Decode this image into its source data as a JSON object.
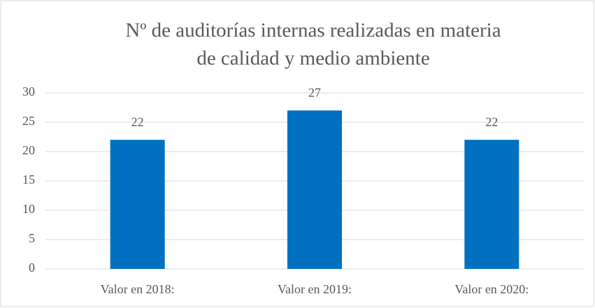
{
  "chart_data": {
    "type": "bar",
    "title": [
      "Nº de auditorías internas realizadas en materia",
      "de calidad y medio ambiente"
    ],
    "categories": [
      "Valor en 2018:",
      "Valor en 2019:",
      "Valor en 2020:"
    ],
    "values": [
      22,
      27,
      22
    ],
    "color": "#0070c0",
    "ylim": [
      0,
      30
    ],
    "yticks": [
      0,
      5,
      10,
      15,
      20,
      25,
      30
    ],
    "grid": true,
    "data_labels": true
  }
}
